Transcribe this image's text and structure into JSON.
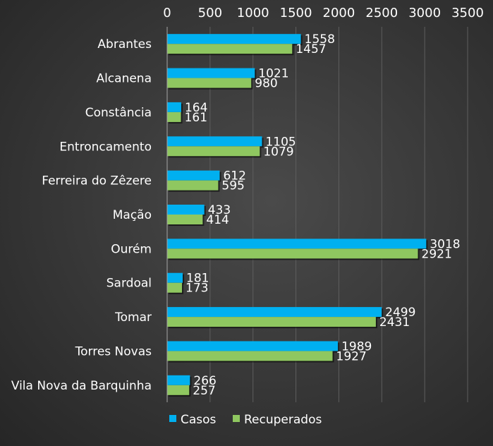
{
  "chart_data": {
    "type": "bar",
    "orientation": "horizontal",
    "title": "",
    "categories": [
      "Abrantes",
      "Alcanena",
      "Constância",
      "Entroncamento",
      "Ferreira do Zêzere",
      "Mação",
      "Ourém",
      "Sardoal",
      "Tomar",
      "Torres Novas",
      "Vila Nova da Barquinha"
    ],
    "series": [
      {
        "name": "Casos",
        "color": "#00b0f0",
        "values": [
          1558,
          1021,
          164,
          1105,
          612,
          433,
          3018,
          181,
          2499,
          1989,
          266
        ]
      },
      {
        "name": "Recuperados",
        "color": "#8fc760",
        "values": [
          1457,
          980,
          161,
          1079,
          595,
          414,
          2921,
          173,
          2431,
          1927,
          257
        ]
      }
    ],
    "xlim": [
      0,
      3500
    ],
    "x_ticks": [
      0,
      500,
      1000,
      1500,
      2000,
      2500,
      3000,
      3500
    ],
    "x_axis_position": "top",
    "grid": true,
    "legend_position": "bottom"
  }
}
